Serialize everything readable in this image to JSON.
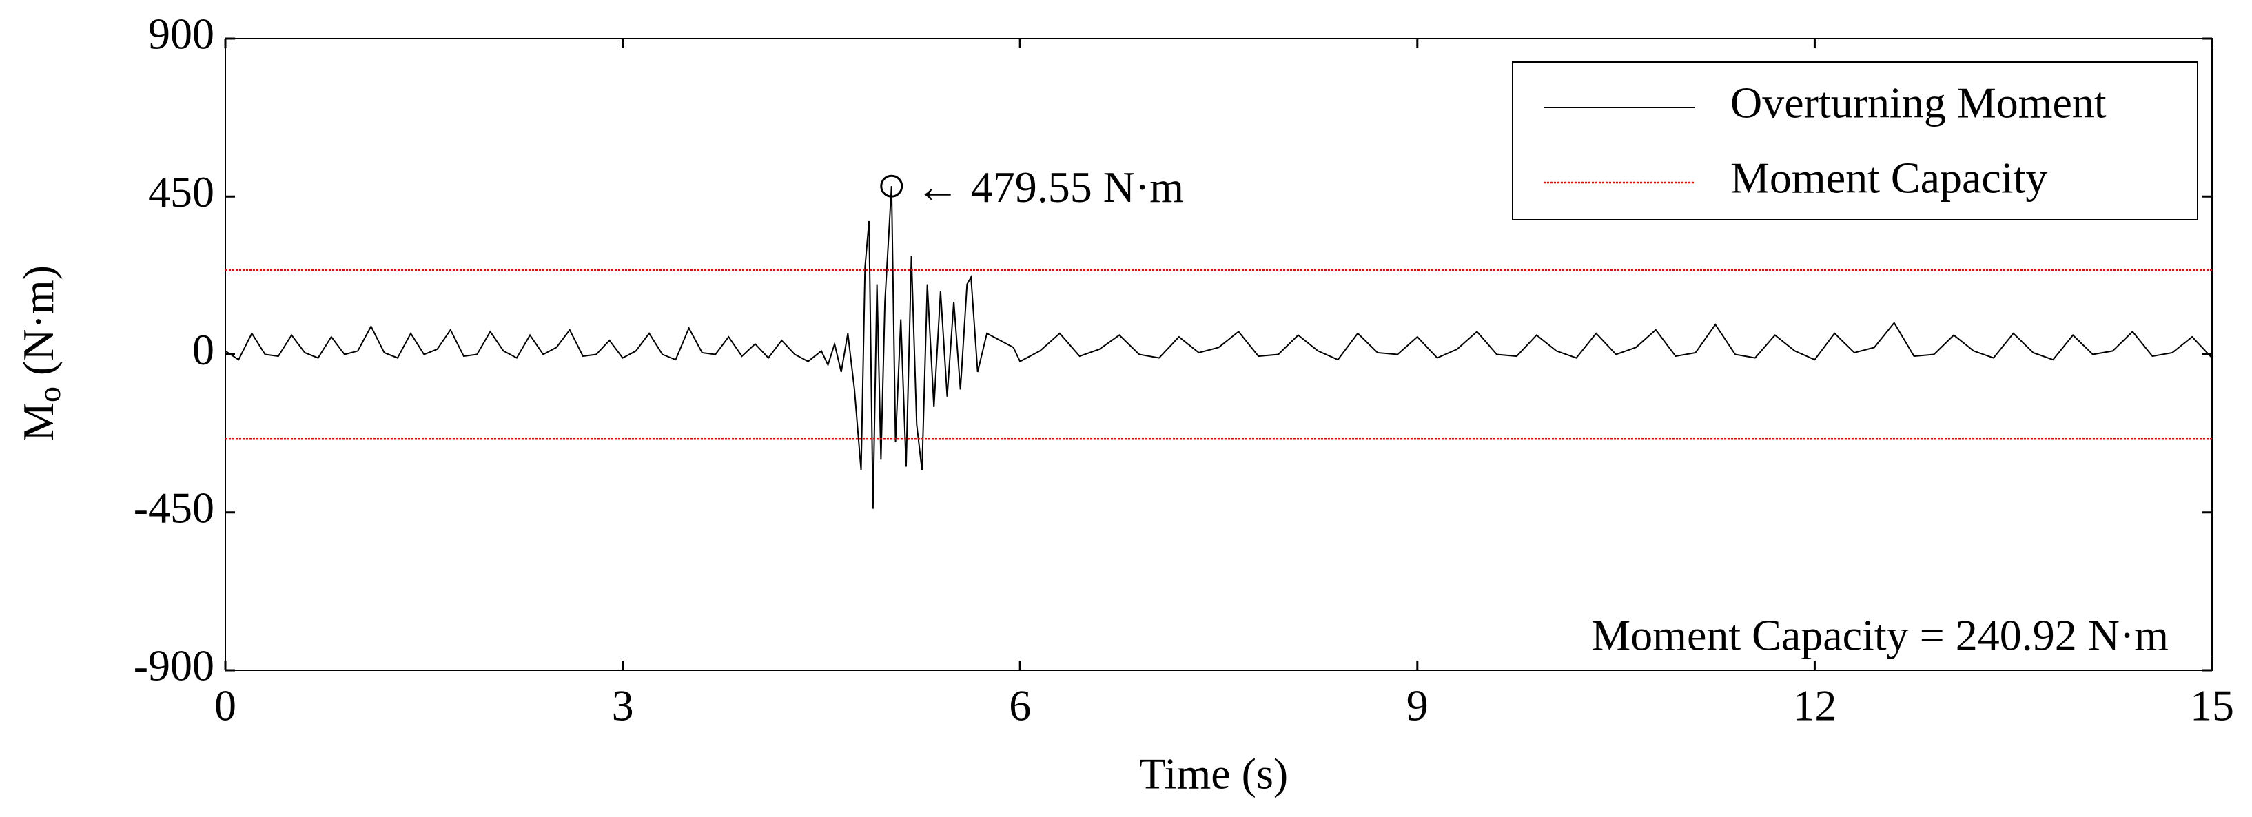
{
  "chart_data": {
    "type": "line",
    "xlabel": "Time (s)",
    "ylabel": {
      "main": "M",
      "sub": "o",
      "unit": " (N·m)"
    },
    "xlim": [
      0,
      15
    ],
    "xticks": [
      0,
      3,
      6,
      9,
      12,
      15
    ],
    "ylim": [
      -900,
      900
    ],
    "yticks": [
      -900,
      -450,
      0,
      450,
      900
    ],
    "grid": false,
    "legend": "upper right",
    "peak_label": "← 479.55  N·m",
    "capacity_label": "Moment Capacity =  240.92  N·m",
    "series": [
      {
        "name": "Overturning Moment",
        "color": "#000000",
        "x": [
          0,
          0.1,
          0.2,
          0.3,
          0.4,
          0.5,
          0.6,
          0.7,
          0.8,
          0.9,
          1,
          1.1,
          1.2,
          1.3,
          1.4,
          1.5,
          1.6,
          1.7,
          1.8,
          1.9,
          2,
          2.1,
          2.2,
          2.3,
          2.4,
          2.5,
          2.6,
          2.7,
          2.8,
          2.9,
          3,
          3.1,
          3.2,
          3.3,
          3.4,
          3.5,
          3.6,
          3.7,
          3.8,
          3.9,
          4,
          4.1,
          4.2,
          4.3,
          4.4,
          4.5,
          4.55,
          4.6,
          4.65,
          4.7,
          4.75,
          4.8,
          4.83,
          4.86,
          4.89,
          4.92,
          4.95,
          4.98,
          5.03,
          5.06,
          5.1,
          5.14,
          5.18,
          5.22,
          5.26,
          5.3,
          5.35,
          5.4,
          5.45,
          5.5,
          5.55,
          5.6,
          5.63,
          5.68,
          5.75,
          5.85,
          5.95,
          6,
          6.15,
          6.3,
          6.45,
          6.6,
          6.75,
          6.9,
          7.05,
          7.2,
          7.35,
          7.5,
          7.65,
          7.8,
          7.95,
          8.1,
          8.25,
          8.4,
          8.55,
          8.7,
          8.85,
          9,
          9.15,
          9.3,
          9.45,
          9.6,
          9.75,
          9.9,
          10.05,
          10.2,
          10.35,
          10.5,
          10.65,
          10.8,
          10.95,
          11.1,
          11.25,
          11.4,
          11.55,
          11.7,
          11.85,
          12,
          12.15,
          12.3,
          12.45,
          12.6,
          12.75,
          12.9,
          13.05,
          13.2,
          13.35,
          13.5,
          13.65,
          13.8,
          13.95,
          14.1,
          14.25,
          14.4,
          14.55,
          14.7,
          14.85,
          15
        ],
        "values": [
          10,
          -15,
          60,
          0,
          -5,
          55,
          5,
          -10,
          50,
          0,
          10,
          80,
          5,
          -10,
          60,
          0,
          15,
          70,
          -5,
          0,
          65,
          10,
          -10,
          55,
          0,
          20,
          70,
          -5,
          0,
          40,
          -10,
          10,
          60,
          0,
          -15,
          75,
          5,
          0,
          50,
          -5,
          30,
          -10,
          40,
          0,
          -20,
          10,
          -30,
          30,
          -50,
          60,
          -100,
          -330,
          250,
          380,
          -440,
          200,
          -300,
          150,
          479.55,
          -250,
          100,
          -320,
          280,
          -200,
          -330,
          200,
          -150,
          180,
          -120,
          150,
          -100,
          200,
          220,
          -50,
          60,
          40,
          20,
          -20,
          10,
          60,
          -5,
          15,
          55,
          0,
          -10,
          50,
          5,
          20,
          65,
          -5,
          0,
          55,
          10,
          -15,
          60,
          5,
          0,
          50,
          -10,
          15,
          65,
          0,
          -5,
          55,
          10,
          -10,
          60,
          0,
          20,
          70,
          -5,
          5,
          85,
          0,
          -10,
          55,
          10,
          -15,
          60,
          5,
          20,
          90,
          -5,
          0,
          55,
          10,
          -10,
          60,
          5,
          -15,
          55,
          0,
          10,
          65,
          -5,
          5,
          50,
          -10
        ]
      },
      {
        "name": "Moment Capacity",
        "color": "#ff0000",
        "x": [
          0,
          15,
          15,
          0,
          15
        ],
        "values": [
          240.92,
          240.92,
          null,
          -240.92,
          -240.92
        ]
      }
    ]
  }
}
